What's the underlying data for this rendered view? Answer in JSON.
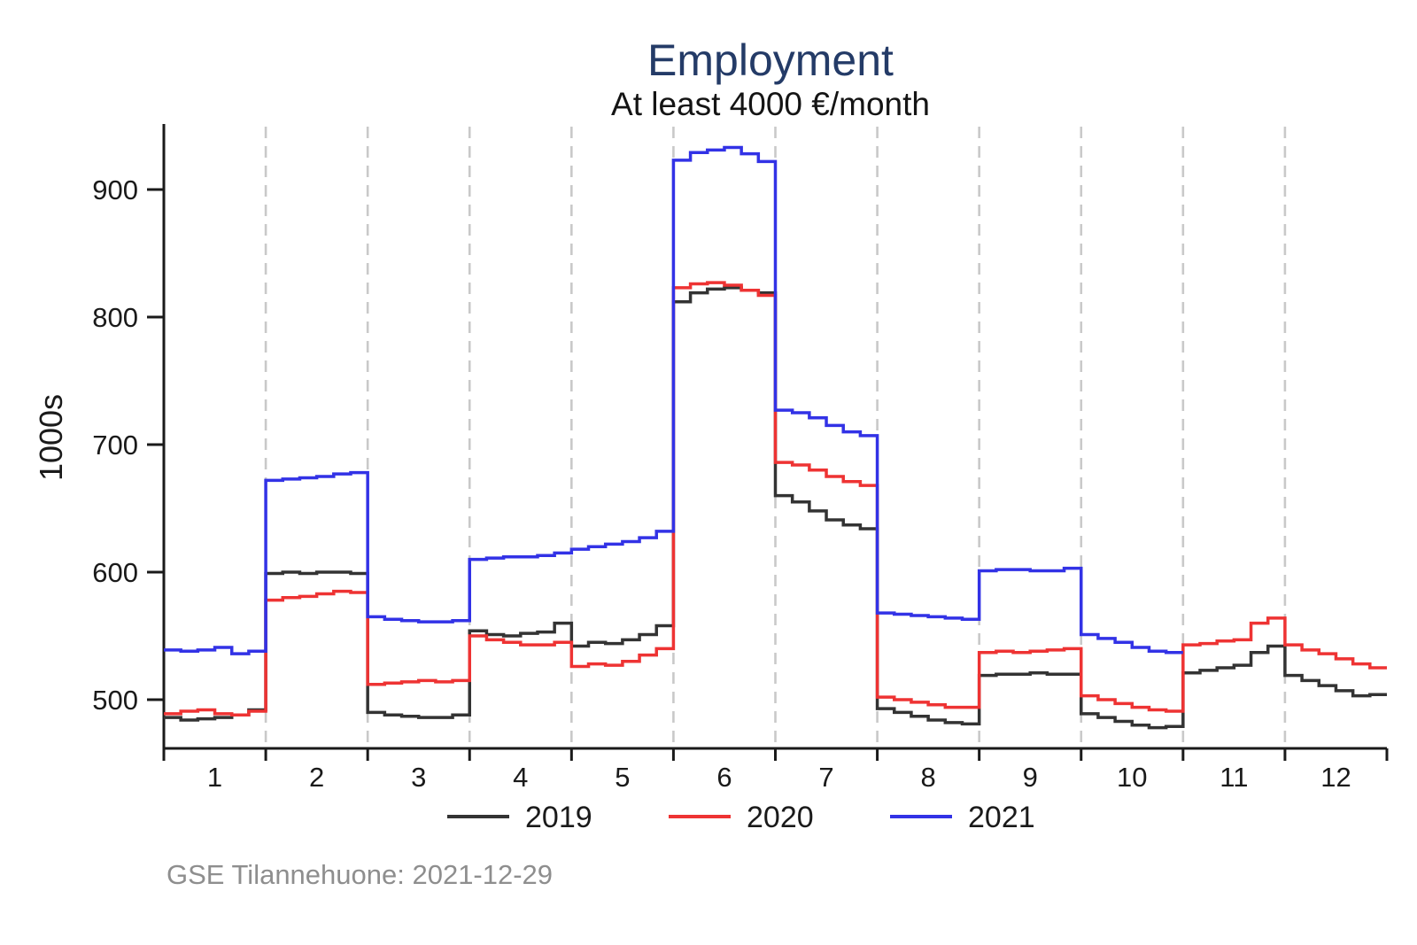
{
  "page": {
    "background": "#ffffff"
  },
  "chart": {
    "title": "Employment",
    "subtitle": "At least 4000 €/month",
    "ylabel": "1000s",
    "source_note": "GSE Tilannehuone: 2021-12-29",
    "colors": {
      "title": "#243B67",
      "subtitle": "#141414",
      "axis": "#1a1a1a",
      "tick_text": "#1a1a1a",
      "grid": "#c9c9c9",
      "note": "#8e8e8e",
      "series_2019": "#333333",
      "series_2020": "#ee3333",
      "series_2021": "#3232e6"
    }
  },
  "chart_data": {
    "type": "line",
    "style": "step",
    "title": "Employment",
    "subtitle": "At least 4000 €/month",
    "xlabel": "",
    "ylabel": "1000s",
    "units": "thousands of persons",
    "x_ticks": [
      "1",
      "2",
      "3",
      "4",
      "5",
      "6",
      "7",
      "8",
      "9",
      "10",
      "11",
      "12"
    ],
    "y_ticks": [
      500,
      600,
      700,
      800,
      900
    ],
    "ylim": [
      462,
      949
    ],
    "grid": "vertical dashed lines at month boundaries",
    "legend_position": "bottom-center",
    "legend": [
      {
        "label": "2019",
        "color": "#333333"
      },
      {
        "label": "2020",
        "color": "#ee3333"
      },
      {
        "label": "2021",
        "color": "#3232e6"
      }
    ],
    "samples_per_month": 6,
    "series": [
      {
        "name": "2019",
        "color": "#333333",
        "monthly_step_values": [
          [
            486,
            484,
            485,
            486,
            488,
            492
          ],
          [
            599,
            600,
            599,
            600,
            600,
            599
          ],
          [
            490,
            488,
            487,
            486,
            486,
            488
          ],
          [
            554,
            551,
            550,
            552,
            553,
            560
          ],
          [
            542,
            545,
            544,
            547,
            551,
            558
          ],
          [
            812,
            819,
            822,
            823,
            821,
            819
          ],
          [
            660,
            655,
            648,
            641,
            637,
            634
          ],
          [
            493,
            490,
            487,
            484,
            482,
            481
          ],
          [
            519,
            520,
            520,
            521,
            520,
            520
          ],
          [
            489,
            486,
            483,
            480,
            478,
            479
          ],
          [
            521,
            523,
            525,
            527,
            537,
            542
          ],
          [
            519,
            515,
            511,
            507,
            503,
            504
          ]
        ]
      },
      {
        "name": "2020",
        "color": "#ee3333",
        "monthly_step_values": [
          [
            489,
            491,
            492,
            489,
            488,
            491
          ],
          [
            578,
            580,
            581,
            583,
            585,
            584
          ],
          [
            512,
            513,
            514,
            515,
            514,
            515
          ],
          [
            550,
            547,
            545,
            543,
            543,
            545
          ],
          [
            526,
            528,
            527,
            530,
            535,
            540
          ],
          [
            823,
            826,
            827,
            825,
            821,
            817
          ],
          [
            686,
            684,
            680,
            675,
            671,
            668
          ],
          [
            502,
            500,
            498,
            496,
            494,
            494
          ],
          [
            537,
            538,
            537,
            538,
            539,
            540
          ],
          [
            503,
            500,
            497,
            494,
            492,
            491
          ],
          [
            543,
            544,
            546,
            547,
            560,
            564
          ],
          [
            543,
            539,
            536,
            532,
            528,
            525
          ]
        ]
      },
      {
        "name": "2021",
        "color": "#3232e6",
        "monthly_step_values": [
          [
            539,
            538,
            539,
            541,
            536,
            538
          ],
          [
            672,
            673,
            674,
            675,
            677,
            678
          ],
          [
            565,
            563,
            562,
            561,
            561,
            562
          ],
          [
            610,
            611,
            612,
            612,
            613,
            615
          ],
          [
            618,
            620,
            622,
            624,
            627,
            632
          ],
          [
            923,
            929,
            931,
            933,
            928,
            922
          ],
          [
            727,
            725,
            721,
            715,
            710,
            707
          ],
          [
            568,
            567,
            566,
            565,
            564,
            563
          ],
          [
            601,
            602,
            602,
            601,
            601,
            603
          ],
          [
            551,
            548,
            545,
            541,
            538,
            537
          ],
          null,
          null
        ]
      }
    ]
  }
}
